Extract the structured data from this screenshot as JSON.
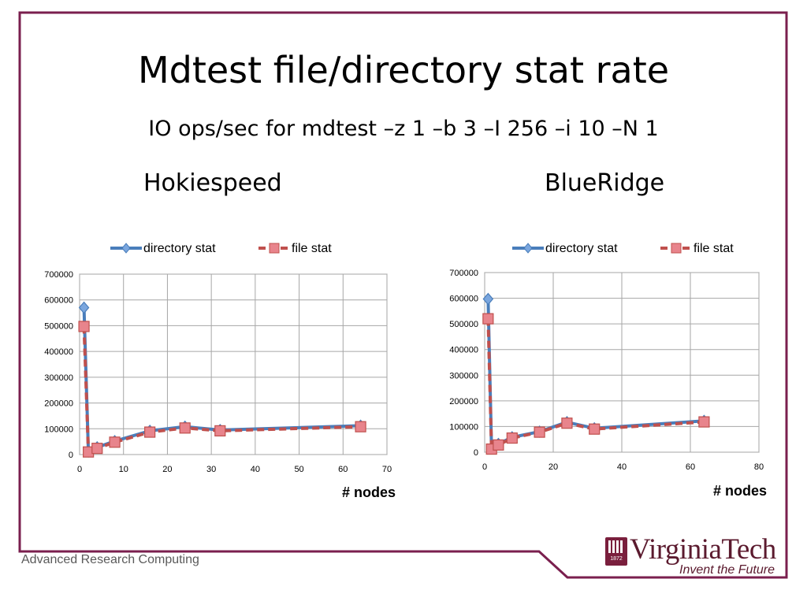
{
  "slide": {
    "title": "Mdtest file/directory stat rate",
    "subtitle": "IO ops/sec for mdtest –z 1 –b 3 –I 256 –i 10 –N 1",
    "footer": "Advanced Research Computing"
  },
  "logo": {
    "name": "VirginiaTech",
    "tagline": "Invent the Future",
    "seal_year": "1872"
  },
  "colors": {
    "frame": "#7a1f4e",
    "directory_stat": "#4a7ebb",
    "file_stat": "#c0504d",
    "file_marker_fill": "#e8848c",
    "directory_marker_fill": "#7aa6de",
    "grid": "#a6a6a6"
  },
  "chart_data": [
    {
      "type": "line",
      "heading": "Hokiespeed",
      "xlabel": "# nodes",
      "ylabel": "",
      "xlim": [
        0,
        70
      ],
      "ylim": [
        0,
        700000
      ],
      "xticks": [
        0,
        10,
        20,
        30,
        40,
        50,
        60,
        70
      ],
      "yticks": [
        0,
        100000,
        200000,
        300000,
        400000,
        500000,
        600000,
        700000
      ],
      "grid": true,
      "legend_position": "top-center",
      "series": [
        {
          "name": "directory stat",
          "x": [
            1,
            2,
            4,
            8,
            16,
            24,
            32,
            64
          ],
          "y": [
            570000,
            12000,
            28000,
            52000,
            92000,
            108000,
            95000,
            112000
          ]
        },
        {
          "name": "file stat",
          "x": [
            1,
            2,
            4,
            8,
            16,
            24,
            32,
            64
          ],
          "y": [
            497000,
            10000,
            24000,
            48000,
            87000,
            103000,
            92000,
            108000
          ]
        }
      ]
    },
    {
      "type": "line",
      "heading": "BlueRidge",
      "xlabel": "# nodes",
      "ylabel": "",
      "xlim": [
        0,
        80
      ],
      "ylim": [
        0,
        700000
      ],
      "xticks": [
        0,
        20,
        40,
        60,
        80
      ],
      "yticks": [
        0,
        100000,
        200000,
        300000,
        400000,
        500000,
        600000,
        700000
      ],
      "grid": true,
      "legend_position": "top-center",
      "series": [
        {
          "name": "directory stat",
          "x": [
            1,
            2,
            4,
            8,
            16,
            24,
            32,
            64
          ],
          "y": [
            597000,
            15000,
            32000,
            58000,
            80000,
            117000,
            93000,
            122000
          ]
        },
        {
          "name": "file stat",
          "x": [
            1,
            2,
            4,
            8,
            16,
            24,
            32,
            64
          ],
          "y": [
            520000,
            12000,
            28000,
            55000,
            78000,
            113000,
            90000,
            118000
          ]
        }
      ]
    }
  ]
}
